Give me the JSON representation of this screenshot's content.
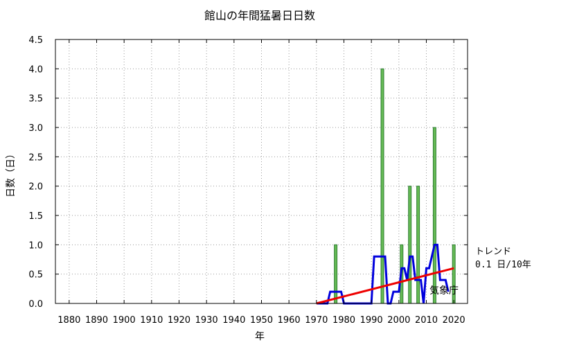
{
  "chart_data": {
    "type": "bar",
    "title": "館山の年間猛暑日日数",
    "xlabel": "年",
    "ylabel": "日数（日）",
    "xlim": [
      1875,
      2025
    ],
    "ylim": [
      0,
      4.5
    ],
    "x_ticks": [
      1880,
      1890,
      1900,
      1910,
      1920,
      1930,
      1940,
      1950,
      1960,
      1970,
      1980,
      1990,
      2000,
      2010,
      2020
    ],
    "y_ticks": [
      0,
      0.5,
      1.0,
      1.5,
      2.0,
      2.5,
      3.0,
      3.5,
      4.0,
      4.5
    ],
    "y_tick_labels": [
      "0.0",
      "0.5",
      "1.0",
      "1.5",
      "2.0",
      "2.5",
      "3.0",
      "3.5",
      "4.0",
      "4.5"
    ],
    "grid": true,
    "colors": {
      "bar_fill": "#66bb55",
      "bar_edge": "#2e7d32",
      "moving_avg": "#0000dd",
      "trend": "#ee0000"
    },
    "bars": [
      {
        "year": 1977,
        "value": 1
      },
      {
        "year": 1994,
        "value": 4
      },
      {
        "year": 2001,
        "value": 1
      },
      {
        "year": 2004,
        "value": 2
      },
      {
        "year": 2007,
        "value": 2
      },
      {
        "year": 2013,
        "value": 3
      },
      {
        "year": 2020,
        "value": 1
      }
    ],
    "moving_average": {
      "x": [
        1970,
        1971,
        1972,
        1973,
        1974,
        1975,
        1976,
        1977,
        1978,
        1979,
        1980,
        1981,
        1982,
        1983,
        1984,
        1985,
        1986,
        1987,
        1988,
        1989,
        1990,
        1991,
        1992,
        1993,
        1994,
        1995,
        1996,
        1997,
        1998,
        1999,
        2000,
        2001,
        2002,
        2003,
        2004,
        2005,
        2006,
        2007,
        2008,
        2009,
        2010,
        2011,
        2012,
        2013,
        2014,
        2015,
        2016,
        2017,
        2018
      ],
      "y": [
        0,
        0,
        0,
        0,
        0,
        0.2,
        0.2,
        0.2,
        0.2,
        0.2,
        0,
        0,
        0,
        0,
        0,
        0,
        0,
        0,
        0,
        0,
        0,
        0.8,
        0.8,
        0.8,
        0.8,
        0.8,
        0,
        0,
        0.2,
        0.2,
        0.2,
        0.6,
        0.6,
        0.4,
        0.8,
        0.8,
        0.4,
        0.4,
        0.4,
        0,
        0.6,
        0.6,
        0.8,
        1.0,
        1.0,
        0.4,
        0.4,
        0.4,
        0.2
      ]
    },
    "trend_line": {
      "x": [
        1970,
        2020
      ],
      "y": [
        0.0,
        0.6
      ]
    },
    "annotations": {
      "trend_label": "トレンド",
      "trend_value": "0.1 日/10年",
      "source": "気象庁"
    }
  }
}
